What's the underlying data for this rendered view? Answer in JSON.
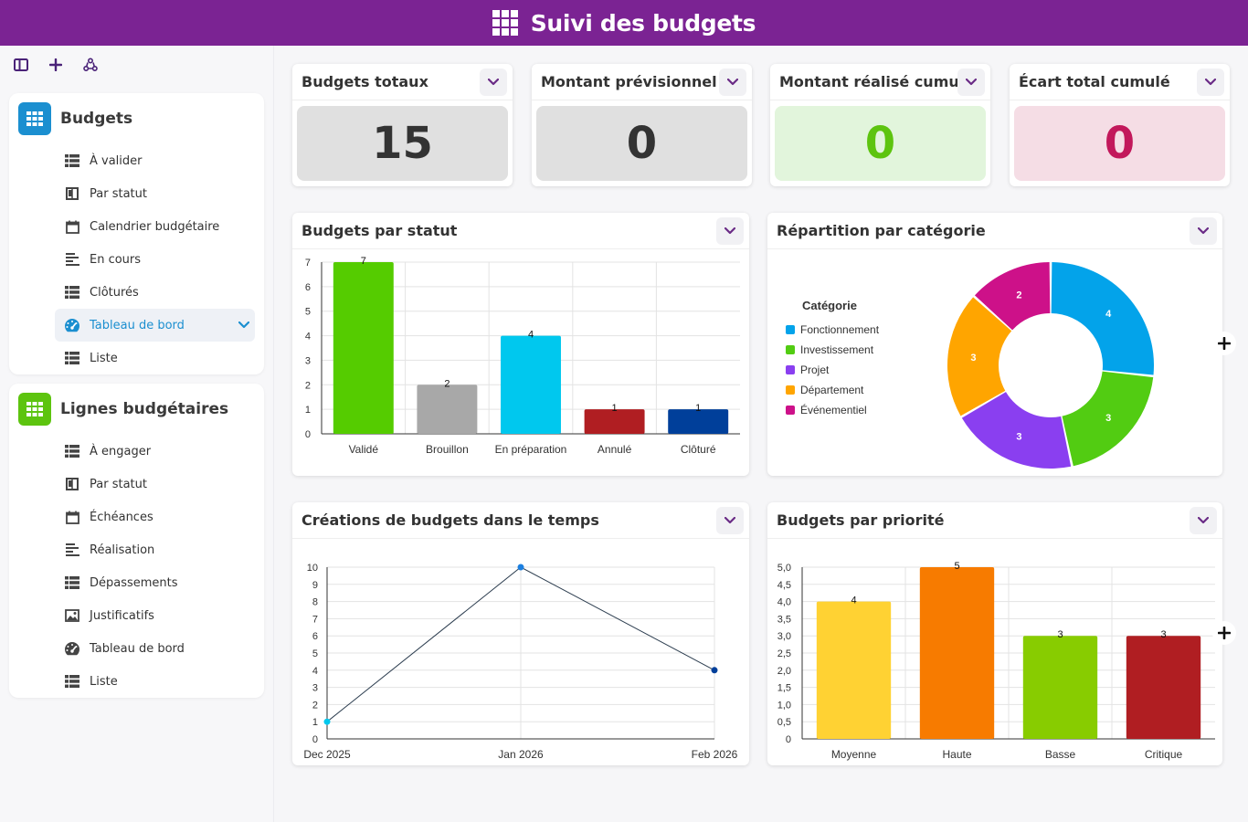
{
  "app": {
    "title": "Suivi des budgets"
  },
  "sidebar": {
    "sections": [
      {
        "title": "Budgets",
        "color": "#1b8fd0",
        "items": [
          {
            "label": "À valider",
            "icon": "table-icon"
          },
          {
            "label": "Par statut",
            "icon": "kanban-icon"
          },
          {
            "label": "Calendrier budgétaire",
            "icon": "calendar-icon"
          },
          {
            "label": "En cours",
            "icon": "timeline-icon"
          },
          {
            "label": "Clôturés",
            "icon": "table-icon"
          },
          {
            "label": "Tableau de bord",
            "icon": "dashboard-icon",
            "active": true
          },
          {
            "label": "Liste",
            "icon": "table-icon"
          }
        ]
      },
      {
        "title": "Lignes budgétaires",
        "color": "#5dc40f",
        "items": [
          {
            "label": "À engager",
            "icon": "table-icon"
          },
          {
            "label": "Par statut",
            "icon": "kanban-icon"
          },
          {
            "label": "Échéances",
            "icon": "calendar-icon"
          },
          {
            "label": "Réalisation",
            "icon": "timeline-icon"
          },
          {
            "label": "Dépassements",
            "icon": "table-icon"
          },
          {
            "label": "Justificatifs",
            "icon": "gallery-icon"
          },
          {
            "label": "Tableau de bord",
            "icon": "dashboard-icon"
          },
          {
            "label": "Liste",
            "icon": "table-icon"
          }
        ]
      }
    ]
  },
  "kpis": [
    {
      "title": "Budgets totaux",
      "value": "15",
      "bg": "#e0e0e0",
      "fg": "#333333"
    },
    {
      "title": "Montant prévisionnel cumulé",
      "value": "0",
      "bg": "#e0e0e0",
      "fg": "#333333"
    },
    {
      "title": "Montant réalisé cumulé",
      "value": "0",
      "bg": "#e2f5dc",
      "fg": "#5dc40f"
    },
    {
      "title": "Écart total cumulé",
      "value": "0",
      "bg": "#f5dde5",
      "fg": "#c2185b"
    }
  ],
  "charts": {
    "status": {
      "title": "Budgets par statut"
    },
    "category": {
      "title": "Répartition par catégorie"
    },
    "timeline": {
      "title": "Créations de budgets dans le temps"
    },
    "priority": {
      "title": "Budgets par priorité"
    }
  },
  "chart_data": [
    {
      "type": "bar",
      "title": "Budgets par statut",
      "categories": [
        "Validé",
        "Brouillon",
        "En préparation",
        "Annulé",
        "Clôturé"
      ],
      "values": [
        7,
        2,
        4,
        1,
        1
      ],
      "colors": [
        "#55cc00",
        "#a8a8a8",
        "#00c8ee",
        "#b01e22",
        "#003f9a"
      ],
      "yticks": [
        "0",
        "1",
        "2",
        "3",
        "4",
        "5",
        "6",
        "7"
      ],
      "ylim": [
        0,
        7
      ],
      "grid": true
    },
    {
      "type": "pie",
      "title": "Répartition par catégorie",
      "legend_title": "Catégorie",
      "legend_position": "left",
      "categories": [
        "Fonctionnement",
        "Investissement",
        "Projet",
        "Département",
        "Événementiel"
      ],
      "values": [
        4,
        3,
        3,
        3,
        2
      ],
      "colors": [
        "#03a3ea",
        "#52cc12",
        "#8a3ff0",
        "#ffa500",
        "#cd1189"
      ]
    },
    {
      "type": "line",
      "title": "Créations de budgets dans le temps",
      "x": [
        "Dec 2025",
        "Jan 2026",
        "Feb 2026"
      ],
      "values": [
        1,
        10,
        4
      ],
      "point_colors": [
        "#00c8ee",
        "#1b7fe0",
        "#003f9a"
      ],
      "yticks": [
        "0",
        "1",
        "2",
        "3",
        "4",
        "5",
        "6",
        "7",
        "8",
        "9",
        "10"
      ],
      "ylim": [
        0,
        10
      ],
      "grid": true
    },
    {
      "type": "bar",
      "title": "Budgets par priorité",
      "categories": [
        "Moyenne",
        "Haute",
        "Basse",
        "Critique"
      ],
      "values": [
        4,
        5,
        3,
        3
      ],
      "colors": [
        "#ffd233",
        "#f77b00",
        "#88cc00",
        "#b01e22"
      ],
      "yticks": [
        "0",
        "0,5",
        "1,0",
        "1,5",
        "2,0",
        "2,5",
        "3,0",
        "3,5",
        "4,0",
        "4,5",
        "5,0"
      ],
      "ylim": [
        0,
        5
      ],
      "grid": true
    }
  ]
}
